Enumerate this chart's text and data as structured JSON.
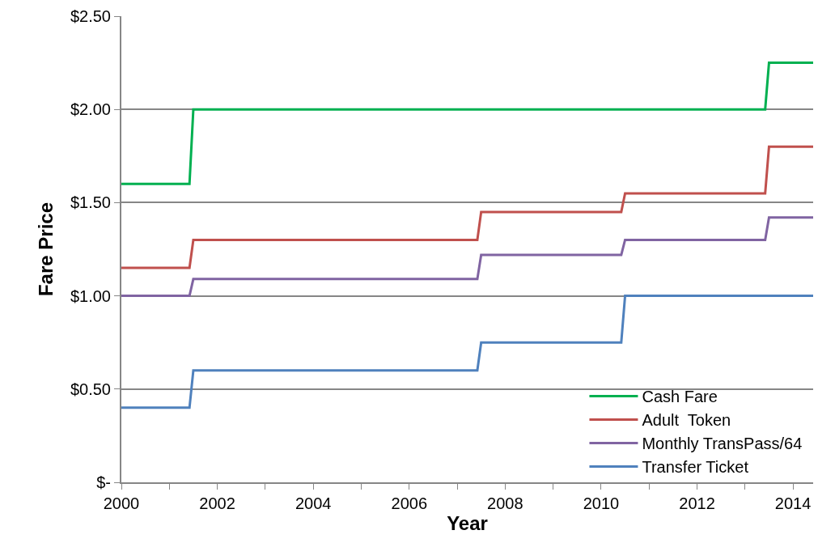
{
  "chart_data": {
    "type": "line",
    "xlabel": "Year",
    "ylabel": "Fare Price",
    "series": [
      {
        "name": "Cash Fare",
        "color": "#00b050",
        "x": [
          2000,
          2001.42,
          2001.5,
          2013.42,
          2013.5,
          2014.42
        ],
        "values": [
          1.6,
          1.6,
          2.0,
          2.0,
          2.25,
          2.25
        ]
      },
      {
        "name": "Adult  Token",
        "color": "#c0504d",
        "x": [
          2000,
          2001.42,
          2001.5,
          2007.42,
          2007.5,
          2010.42,
          2010.5,
          2013.42,
          2013.5,
          2014.42
        ],
        "values": [
          1.15,
          1.15,
          1.3,
          1.3,
          1.45,
          1.45,
          1.55,
          1.55,
          1.8,
          1.8
        ]
      },
      {
        "name": "Monthly TransPass/64",
        "color": "#8064a2",
        "x": [
          2000,
          2001.42,
          2001.5,
          2007.42,
          2007.5,
          2010.42,
          2010.5,
          2013.42,
          2013.5,
          2014.42
        ],
        "values": [
          1.0,
          1.0,
          1.09,
          1.09,
          1.22,
          1.22,
          1.3,
          1.3,
          1.42,
          1.42
        ]
      },
      {
        "name": "Transfer Ticket",
        "color": "#4f81bd",
        "x": [
          2000,
          2001.42,
          2001.5,
          2007.42,
          2007.5,
          2010.42,
          2010.5,
          2014.42
        ],
        "values": [
          0.4,
          0.4,
          0.6,
          0.6,
          0.75,
          0.75,
          1.0,
          1.0
        ]
      }
    ],
    "xlim": [
      2000,
      2014.42
    ],
    "xticks": [
      2000,
      {
        "value": 2001,
        "label": null
      },
      2002,
      {
        "value": 2003,
        "label": null
      },
      2004,
      {
        "value": 2005,
        "label": null
      },
      2006,
      {
        "value": 2007,
        "label": null
      },
      2008,
      {
        "value": 2009,
        "label": null
      },
      2010,
      {
        "value": 2011,
        "label": null
      },
      2012,
      {
        "value": 2013,
        "label": null
      },
      2014
    ],
    "ylim": [
      0,
      2.5
    ],
    "yticks": [
      {
        "value": 0,
        "label": "$-"
      },
      {
        "value": 0.5,
        "label": "$0.50"
      },
      {
        "value": 1.0,
        "label": "$1.00"
      },
      {
        "value": 1.5,
        "label": "$1.50"
      },
      {
        "value": 2.0,
        "label": "$2.00"
      },
      {
        "value": 2.5,
        "label": "$2.50"
      }
    ],
    "grid": "y",
    "legend": "bottom right",
    "marker": "none",
    "line_style": "solid"
  }
}
